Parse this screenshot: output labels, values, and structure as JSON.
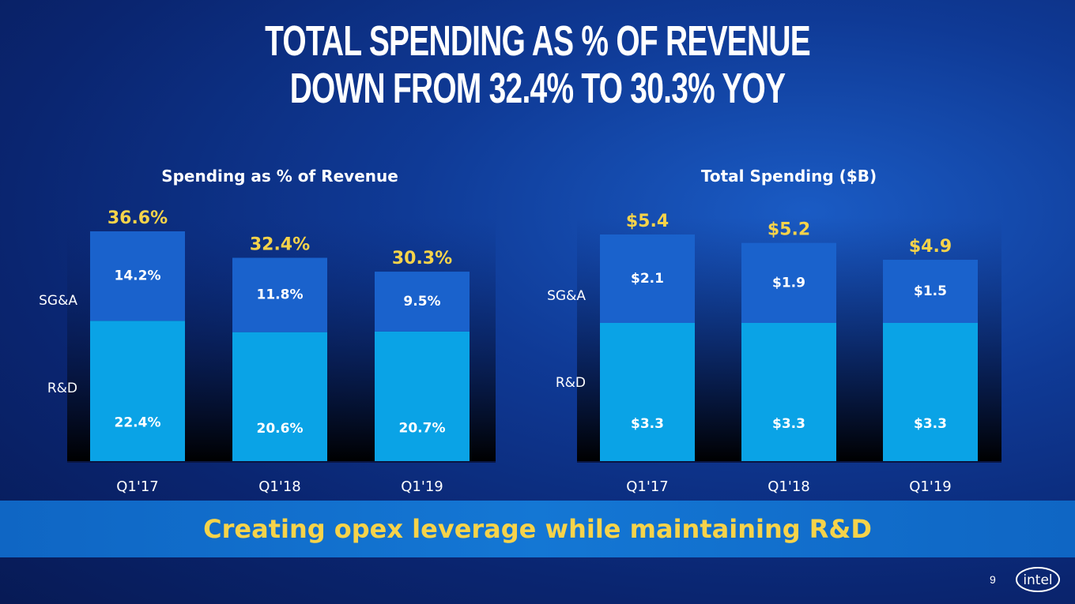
{
  "headline": {
    "line1": "TOTAL SPENDING AS % OF REVENUE",
    "line2": "DOWN FROM 32.4% TO 30.3% YOY"
  },
  "chart_data": [
    {
      "type": "bar",
      "stacked": true,
      "title": "Spending as % of Revenue",
      "categories": [
        "Q1'17",
        "Q1'18",
        "Q1'19"
      ],
      "series": [
        {
          "name": "R&D",
          "values": [
            22.4,
            20.6,
            20.7
          ],
          "labels": [
            "22.4%",
            "20.6%",
            "20.7%"
          ],
          "color": "#0aa3e6"
        },
        {
          "name": "SG&A",
          "values": [
            14.2,
            11.8,
            9.5
          ],
          "labels": [
            "14.2%",
            "11.8%",
            "9.5%"
          ],
          "color": "#1a62cc"
        }
      ],
      "totals": [
        36.6,
        32.4,
        30.3
      ],
      "total_labels": [
        "36.6%",
        "32.4%",
        "30.3%"
      ],
      "ylim": [
        0,
        36.6
      ]
    },
    {
      "type": "bar",
      "stacked": true,
      "title": "Total Spending ($B)",
      "categories": [
        "Q1'17",
        "Q1'18",
        "Q1'19"
      ],
      "series": [
        {
          "name": "R&D",
          "values": [
            3.3,
            3.3,
            3.3
          ],
          "labels": [
            "$3.3",
            "$3.3",
            "$3.3"
          ],
          "color": "#0aa3e6"
        },
        {
          "name": "SG&A",
          "values": [
            2.1,
            1.9,
            1.5
          ],
          "labels": [
            "$2.1",
            "$1.9",
            "$1.5"
          ],
          "color": "#1a62cc"
        }
      ],
      "totals": [
        5.4,
        5.2,
        4.9
      ],
      "total_labels": [
        "$5.4",
        "$5.2",
        "$4.9"
      ],
      "ylim": [
        0,
        5.4
      ]
    }
  ],
  "colors": {
    "total_label": "#f6d34a",
    "rd": "#0aa3e6",
    "sga": "#1a62cc",
    "banner_text": "#f6d34a"
  },
  "banner": {
    "text": "Creating opex leverage while maintaining R&D"
  },
  "footer": {
    "page_number": "9",
    "logo_text": "intel",
    "logo_icon": "intel-logo-icon"
  }
}
